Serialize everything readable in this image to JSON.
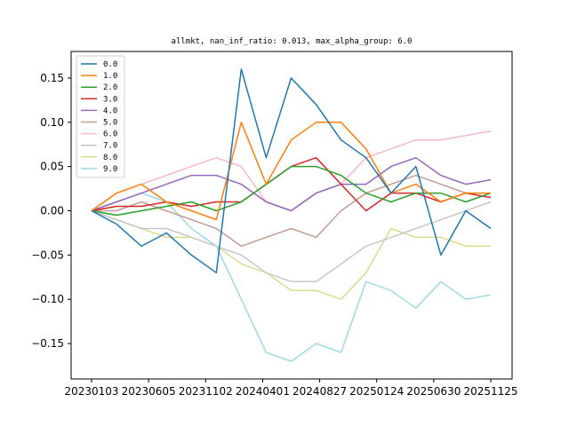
{
  "chart_data": {
    "type": "line",
    "title": "allmkt, nan_inf_ratio: 0.013, max_alpha_group: 6.0",
    "xlabel": "",
    "ylabel": "",
    "ylim": [
      -0.19,
      0.18
    ],
    "grid": false,
    "legend_position": "top-left",
    "x_tick_labels": [
      "20230103",
      "20230605",
      "20231102",
      "20240401",
      "20240827",
      "20250124",
      "20250630",
      "20251125"
    ],
    "y_ticks": [
      0.15,
      0.1,
      0.05,
      0.0,
      -0.05,
      -0.1,
      -0.15
    ],
    "y_tick_labels": [
      "0.15",
      "0.10",
      "0.05",
      "0.00",
      "−0.05",
      "−0.10",
      "−0.15"
    ],
    "x": [
      "20230103",
      "20230305",
      "20230605",
      "20230905",
      "20231102",
      "20231201",
      "20240102",
      "20240201",
      "20240401",
      "20240601",
      "20240827",
      "20241101",
      "20250124",
      "20250401",
      "20250630",
      "20250901",
      "20251125"
    ],
    "series": [
      {
        "name": "0.0",
        "color": "#1f77b4",
        "values": [
          0.0,
          -0.015,
          -0.04,
          -0.025,
          -0.05,
          -0.07,
          0.16,
          0.06,
          0.15,
          0.12,
          0.08,
          0.06,
          0.02,
          0.05,
          -0.05,
          0.0,
          -0.02
        ]
      },
      {
        "name": "1.0",
        "color": "#ff7f0e",
        "values": [
          0.0,
          0.02,
          0.03,
          0.01,
          0.0,
          -0.01,
          0.1,
          0.03,
          0.08,
          0.1,
          0.1,
          0.07,
          0.02,
          0.03,
          0.01,
          0.02,
          0.02
        ]
      },
      {
        "name": "2.0",
        "color": "#2ca02c",
        "values": [
          0.0,
          -0.005,
          0.0,
          0.005,
          0.01,
          0.0,
          0.01,
          0.03,
          0.05,
          0.05,
          0.04,
          0.02,
          0.01,
          0.02,
          0.02,
          0.01,
          0.02
        ]
      },
      {
        "name": "3.0",
        "color": "#d62728",
        "values": [
          0.0,
          0.005,
          0.005,
          0.01,
          0.005,
          0.01,
          0.01,
          0.03,
          0.05,
          0.06,
          0.03,
          0.0,
          0.02,
          0.02,
          0.01,
          0.02,
          0.015
        ]
      },
      {
        "name": "4.0",
        "color": "#9467bd",
        "values": [
          0.0,
          0.01,
          0.02,
          0.03,
          0.04,
          0.04,
          0.03,
          0.01,
          0.0,
          0.02,
          0.03,
          0.03,
          0.05,
          0.06,
          0.04,
          0.03,
          0.035
        ]
      },
      {
        "name": "5.0",
        "color": "#c49c94",
        "values": [
          0.0,
          0.0,
          0.01,
          0.0,
          -0.01,
          -0.02,
          -0.04,
          -0.03,
          -0.02,
          -0.03,
          0.0,
          0.02,
          0.03,
          0.04,
          0.03,
          0.02,
          0.02
        ]
      },
      {
        "name": "6.0",
        "color": "#f7b6d2",
        "values": [
          0.0,
          0.02,
          0.03,
          0.04,
          0.05,
          0.06,
          0.05,
          0.01,
          0.0,
          0.02,
          0.03,
          0.06,
          0.07,
          0.08,
          0.08,
          0.085,
          0.09
        ]
      },
      {
        "name": "7.0",
        "color": "#c7c7c7",
        "values": [
          0.0,
          -0.01,
          -0.02,
          -0.02,
          -0.03,
          -0.04,
          -0.05,
          -0.07,
          -0.08,
          -0.08,
          -0.06,
          -0.04,
          -0.03,
          -0.02,
          -0.01,
          0.0,
          0.01
        ]
      },
      {
        "name": "8.0",
        "color": "#dbdb8d",
        "values": [
          0.0,
          -0.01,
          -0.02,
          -0.03,
          -0.03,
          -0.04,
          -0.06,
          -0.07,
          -0.09,
          -0.09,
          -0.1,
          -0.07,
          -0.02,
          -0.03,
          -0.03,
          -0.04,
          -0.04
        ]
      },
      {
        "name": "9.0",
        "color": "#9edae5",
        "values": [
          0.0,
          0.01,
          0.02,
          0.01,
          -0.02,
          -0.04,
          -0.1,
          -0.16,
          -0.17,
          -0.15,
          -0.16,
          -0.08,
          -0.09,
          -0.11,
          -0.08,
          -0.1,
          -0.095
        ]
      }
    ]
  }
}
